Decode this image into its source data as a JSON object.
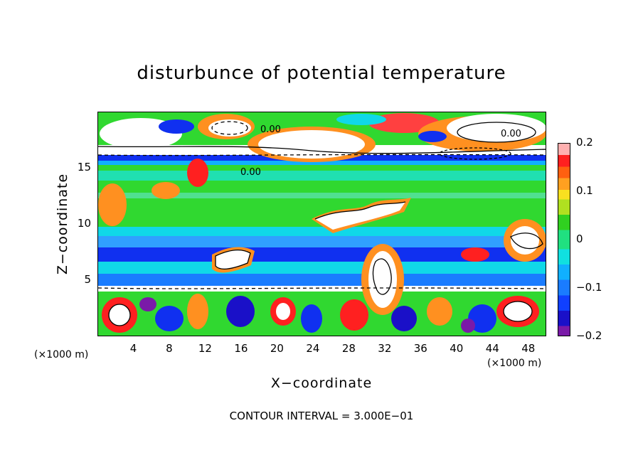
{
  "chart_data": {
    "type": "heatmap",
    "title": "disturbunce of potential temperature",
    "xlabel": "X−coordinate",
    "ylabel": "Z−coordinate",
    "x_unit": "(×1000 m)",
    "x_ticks": [
      "4",
      "8",
      "12",
      "16",
      "20",
      "24",
      "28",
      "32",
      "36",
      "40",
      "44",
      "48"
    ],
    "x_tick_values": [
      4,
      8,
      12,
      16,
      20,
      24,
      28,
      32,
      36,
      40,
      44,
      48
    ],
    "xlim": [
      0,
      50
    ],
    "y_ticks": [
      "5",
      "10",
      "15"
    ],
    "y_tick_values": [
      5,
      10,
      15
    ],
    "ylim": [
      0,
      20
    ],
    "colorbar": {
      "ticks": [
        "0.2",
        "0.1",
        "0",
        "−0.1",
        "−0.2"
      ],
      "tick_values": [
        0.2,
        0.1,
        0,
        -0.1,
        -0.2
      ],
      "range": [
        -0.2,
        0.2
      ]
    },
    "contour_labels": [
      "0.00",
      "0.00",
      "0.00"
    ],
    "contour_interval_text": "CONTOUR INTERVAL = 3.000E−01",
    "grid": false,
    "legend": "colorbar right"
  },
  "colors": {
    "green": "#30d830",
    "cyan": "#10d8e8",
    "blue": "#1030f0",
    "lightblue": "#30a0ff",
    "red": "#ff2020",
    "orange": "#ff9020",
    "white": "#ffffff"
  }
}
